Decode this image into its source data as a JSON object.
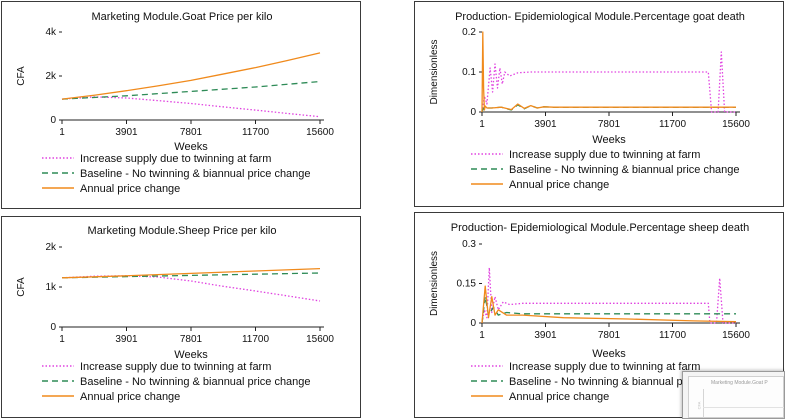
{
  "colors": {
    "twinning": "#e043e0",
    "baseline": "#2e8b57",
    "annual": "#f08a1c",
    "axis": "#222222"
  },
  "chart_data": [
    {
      "id": "goat-price",
      "type": "line",
      "title": "Marketing Module.Goat Price per kilo",
      "xlabel": "Weeks",
      "ylabel": "CFA",
      "xlim": [
        1,
        15600
      ],
      "ylim": [
        0,
        4000
      ],
      "xticks": [
        1,
        3901,
        7801,
        11700,
        15600
      ],
      "xtick_labels": [
        "1",
        "3901",
        "7801",
        "11700",
        "15600"
      ],
      "yticks": [
        0,
        2000,
        4000
      ],
      "ytick_labels": [
        "0",
        "2k",
        "4k"
      ],
      "series": [
        {
          "key": "twinning",
          "name": "Increase supply due to twinning at farm",
          "style": "dotted",
          "x": [
            1,
            2000,
            3901,
            5800,
            7801,
            9700,
            11700,
            13600,
            15600
          ],
          "y": [
            950,
            1050,
            1000,
            880,
            750,
            600,
            450,
            300,
            150
          ]
        },
        {
          "key": "baseline",
          "name": "Baseline - No twinning & biannual price change",
          "style": "dashed",
          "x": [
            1,
            3901,
            7801,
            11700,
            15600
          ],
          "y": [
            950,
            1100,
            1300,
            1500,
            1750
          ]
        },
        {
          "key": "annual",
          "name": "Annual price change",
          "style": "solid",
          "x": [
            1,
            2000,
            3901,
            5800,
            7801,
            9700,
            11700,
            13600,
            15600
          ],
          "y": [
            950,
            1130,
            1330,
            1550,
            1800,
            2080,
            2380,
            2700,
            3050
          ]
        }
      ],
      "legend": "bottom"
    },
    {
      "id": "goat-death",
      "type": "line",
      "title": "Production- Epidemiological Module.Percentage goat death",
      "xlabel": "Weeks",
      "ylabel": "Dimensionless",
      "xlim": [
        1,
        15600
      ],
      "ylim": [
        0,
        0.2
      ],
      "xticks": [
        1,
        3901,
        7801,
        11700,
        15600
      ],
      "xtick_labels": [
        "1",
        "3901",
        "7801",
        "11700",
        "15600"
      ],
      "yticks": [
        0,
        0.1,
        0.2
      ],
      "ytick_labels": [
        "0",
        "0.1",
        "0.2"
      ],
      "series": [
        {
          "key": "twinning",
          "name": "Increase supply due to twinning at farm",
          "style": "dotted",
          "x": [
            1,
            150,
            300,
            500,
            650,
            800,
            950,
            1100,
            1250,
            1400,
            1700,
            2200,
            3000,
            5000,
            9000,
            13000,
            13900,
            14100,
            14300,
            14500,
            14700,
            14900,
            15100,
            15600
          ],
          "y": [
            0.0,
            0.04,
            0.02,
            0.11,
            0.05,
            0.12,
            0.06,
            0.11,
            0.07,
            0.1,
            0.09,
            0.098,
            0.1,
            0.1,
            0.1,
            0.1,
            0.1,
            0.0,
            0.0,
            0.0,
            0.15,
            0.0,
            0.0,
            0.0
          ]
        },
        {
          "key": "baseline",
          "name": "Baseline - No twinning & biannual price change",
          "style": "dashed",
          "x": [
            1,
            100,
            200,
            300,
            600,
            1200,
            1800,
            2200,
            2600,
            3000,
            3400,
            3800,
            4400,
            6000,
            10000,
            14000,
            15600
          ],
          "y": [
            0.0,
            0.01,
            0.005,
            0.01,
            0.01,
            0.012,
            0.005,
            0.018,
            0.008,
            0.016,
            0.01,
            0.013,
            0.012,
            0.012,
            0.012,
            0.012,
            0.012
          ]
        },
        {
          "key": "annual",
          "name": "Annual price change",
          "style": "solid",
          "x": [
            1,
            50,
            100,
            150,
            200,
            300,
            600,
            1200,
            1800,
            2200,
            2600,
            3000,
            3400,
            3800,
            4400,
            6000,
            10000,
            14000,
            15600
          ],
          "y": [
            0.0,
            0.2,
            0.06,
            0.005,
            0.015,
            0.01,
            0.01,
            0.012,
            0.006,
            0.02,
            0.009,
            0.016,
            0.01,
            0.013,
            0.012,
            0.012,
            0.012,
            0.012,
            0.012
          ]
        }
      ],
      "legend": "bottom"
    },
    {
      "id": "sheep-price",
      "type": "line",
      "title": "Marketing Module.Sheep Price per kilo",
      "xlabel": "Weeks",
      "ylabel": "CFA",
      "xlim": [
        1,
        15600
      ],
      "ylim": [
        0,
        2000
      ],
      "xticks": [
        1,
        3901,
        7801,
        11700,
        15600
      ],
      "xtick_labels": [
        "1",
        "3901",
        "7801",
        "11700",
        "15600"
      ],
      "yticks": [
        0,
        1000,
        2000
      ],
      "ytick_labels": [
        "0",
        "1k",
        "2k"
      ],
      "series": [
        {
          "key": "twinning",
          "name": "Increase supply due to twinning at farm",
          "style": "dotted",
          "x": [
            1,
            2000,
            3901,
            5800,
            7801,
            9700,
            11700,
            13600,
            15600
          ],
          "y": [
            1230,
            1270,
            1280,
            1250,
            1150,
            1020,
            900,
            780,
            650
          ]
        },
        {
          "key": "baseline",
          "name": "Baseline - No twinning & biannual price change",
          "style": "dashed",
          "x": [
            1,
            3901,
            7801,
            11700,
            15600
          ],
          "y": [
            1230,
            1260,
            1290,
            1320,
            1350
          ]
        },
        {
          "key": "annual",
          "name": "Annual price change",
          "style": "solid",
          "x": [
            1,
            3901,
            7801,
            11700,
            15600
          ],
          "y": [
            1230,
            1280,
            1340,
            1400,
            1460
          ]
        }
      ],
      "legend": "bottom"
    },
    {
      "id": "sheep-death",
      "type": "line",
      "title": "Production- Epidemiological Module.Percentage sheep death",
      "xlabel": "Weeks",
      "ylabel": "Dimensionless",
      "xlim": [
        1,
        15600
      ],
      "ylim": [
        0,
        0.3
      ],
      "xticks": [
        1,
        3901,
        7801,
        11700,
        15600
      ],
      "xtick_labels": [
        "1",
        "3901",
        "7801",
        "11700",
        "15600"
      ],
      "yticks": [
        0,
        0.15,
        0.3
      ],
      "ytick_labels": [
        "0",
        "0.15",
        "0.3"
      ],
      "series": [
        {
          "key": "twinning",
          "name": "Increase supply due to twinning at farm",
          "style": "dotted",
          "x": [
            1,
            150,
            300,
            450,
            600,
            800,
            1000,
            1300,
            1700,
            2500,
            5000,
            9000,
            13000,
            13900,
            14000,
            14200,
            14400,
            14600,
            14800,
            15000,
            15600
          ],
          "y": [
            0.0,
            0.05,
            0.02,
            0.21,
            0.04,
            0.1,
            0.05,
            0.08,
            0.07,
            0.075,
            0.075,
            0.075,
            0.075,
            0.075,
            0.0,
            0.0,
            0.0,
            0.17,
            0.0,
            0.0,
            0.0
          ]
        },
        {
          "key": "baseline",
          "name": "Baseline - No twinning & biannual price change",
          "style": "dashed",
          "x": [
            1,
            200,
            400,
            700,
            1000,
            1500,
            2500,
            5000,
            9000,
            13000,
            15600
          ],
          "y": [
            0.0,
            0.1,
            0.03,
            0.06,
            0.03,
            0.04,
            0.035,
            0.035,
            0.035,
            0.035,
            0.035
          ]
        },
        {
          "key": "annual",
          "name": "Annual price change",
          "style": "solid",
          "x": [
            1,
            200,
            400,
            600,
            800,
            1000,
            1500,
            2500,
            5000,
            9000,
            13000,
            15600
          ],
          "y": [
            0.0,
            0.14,
            0.02,
            0.1,
            0.03,
            0.05,
            0.03,
            0.03,
            0.02,
            0.015,
            0.008,
            0.005
          ]
        }
      ],
      "legend": "bottom"
    }
  ],
  "thumbnail": {
    "title": "Marketing Module.Goat P"
  }
}
